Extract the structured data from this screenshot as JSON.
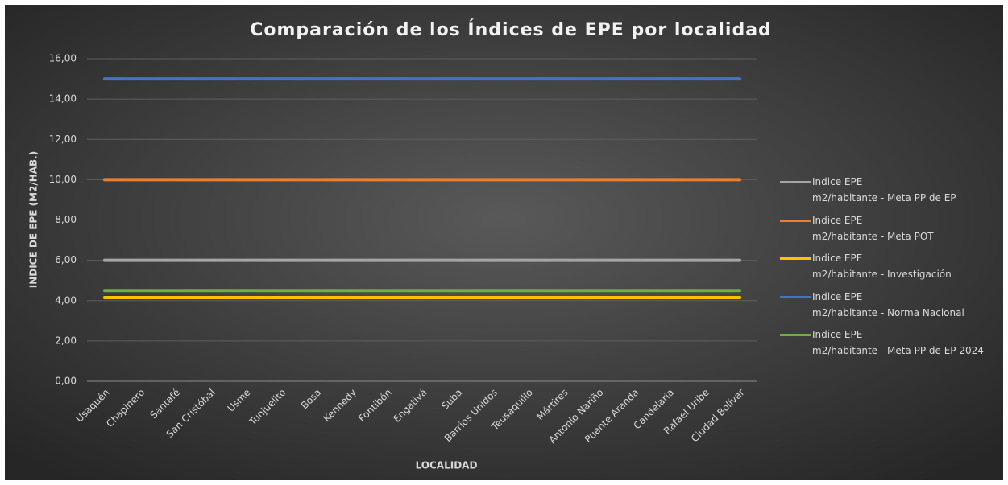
{
  "chart_data": {
    "type": "line",
    "title": "Comparación de los Índices de EPE por localidad",
    "xlabel": "LOCALIDAD",
    "ylabel": "INDICE DE EPE (M2/HAB.)",
    "categories": [
      "Usaquén",
      "Chapinero",
      "Santafé",
      "San Cristóbal",
      "Usme",
      "Tunjuelito",
      "Bosa",
      "Kennedy",
      "Fontibón",
      "Engativá",
      "Suba",
      "Barrios Unidos",
      "Teusaquillo",
      "Mártires",
      "Antonio Nariño",
      "Puente Aranda",
      "Candelaria",
      "Rafael Uribe",
      "Ciudad Bolívar"
    ],
    "series": [
      {
        "name": "Indice EPE\nm2/habitante - Meta PP de EP",
        "color": "#a5a5a5",
        "values": [
          6,
          6,
          6,
          6,
          6,
          6,
          6,
          6,
          6,
          6,
          6,
          6,
          6,
          6,
          6,
          6,
          6,
          6,
          6
        ]
      },
      {
        "name": "Indice EPE\nm2/habitante - Meta POT",
        "color": "#ed7d31",
        "values": [
          10,
          10,
          10,
          10,
          10,
          10,
          10,
          10,
          10,
          10,
          10,
          10,
          10,
          10,
          10,
          10,
          10,
          10,
          10
        ]
      },
      {
        "name": "Indice EPE\nm2/habitante - Investigación",
        "color": "#ffc000",
        "values": [
          4.15,
          4.15,
          4.15,
          4.15,
          4.15,
          4.15,
          4.15,
          4.15,
          4.15,
          4.15,
          4.15,
          4.15,
          4.15,
          4.15,
          4.15,
          4.15,
          4.15,
          4.15,
          4.15
        ]
      },
      {
        "name": "Indice EPE\nm2/habitante - Norma Nacional",
        "color": "#4472c4",
        "values": [
          15,
          15,
          15,
          15,
          15,
          15,
          15,
          15,
          15,
          15,
          15,
          15,
          15,
          15,
          15,
          15,
          15,
          15,
          15
        ]
      },
      {
        "name": "Indice EPE\nm2/habitante - Meta PP de EP 2024",
        "color": "#70ad47",
        "values": [
          4.5,
          4.5,
          4.5,
          4.5,
          4.5,
          4.5,
          4.5,
          4.5,
          4.5,
          4.5,
          4.5,
          4.5,
          4.5,
          4.5,
          4.5,
          4.5,
          4.5,
          4.5,
          4.5
        ]
      }
    ],
    "ylim": [
      0,
      16
    ],
    "yticks": [
      {
        "value": 0,
        "label": "0,00"
      },
      {
        "value": 2,
        "label": "2,00"
      },
      {
        "value": 4,
        "label": "4,00"
      },
      {
        "value": 6,
        "label": "6,00"
      },
      {
        "value": 8,
        "label": "8,00"
      },
      {
        "value": 10,
        "label": "10,00"
      },
      {
        "value": 12,
        "label": "12,00"
      },
      {
        "value": 14,
        "label": "14,00"
      },
      {
        "value": 16,
        "label": "16,00"
      }
    ],
    "grid": true,
    "legend": "right"
  }
}
